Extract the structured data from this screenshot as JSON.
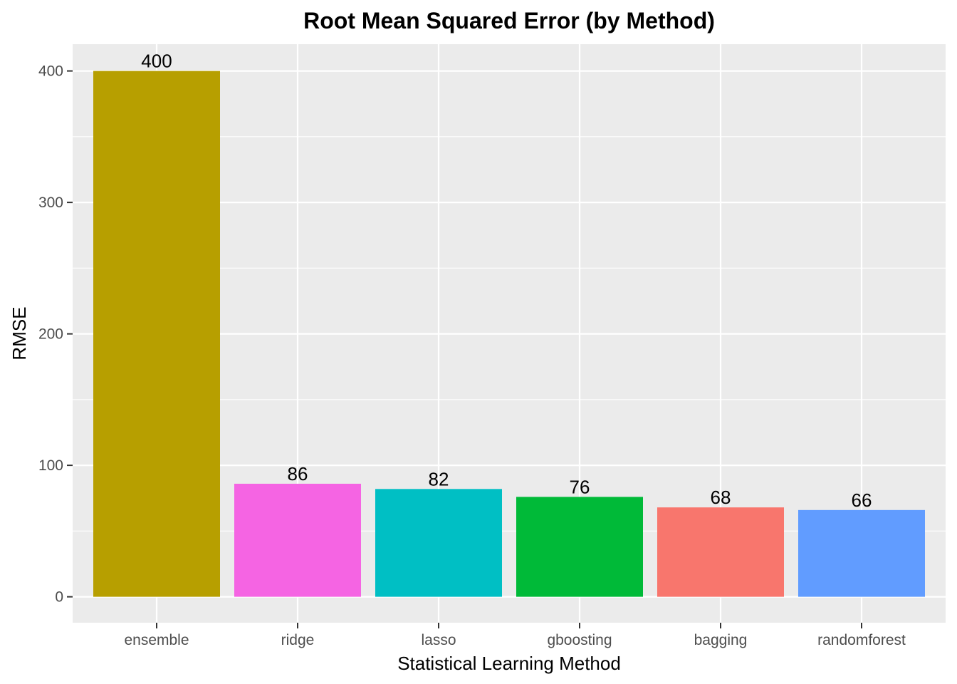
{
  "chart_data": {
    "type": "bar",
    "title": "Root Mean Squared Error (by Method)",
    "xlabel": "Statistical Learning Method",
    "ylabel": "RMSE",
    "categories": [
      "ensemble",
      "ridge",
      "lasso",
      "gboosting",
      "bagging",
      "randomforest"
    ],
    "values": [
      400,
      86,
      82,
      76,
      68,
      66
    ],
    "data_labels": [
      "400",
      "86",
      "82",
      "76",
      "68",
      "66"
    ],
    "colors": [
      "#B79F00",
      "#F564E3",
      "#00BFC4",
      "#00BA38",
      "#F8766D",
      "#619CFF"
    ],
    "yticks": [
      0,
      100,
      200,
      300,
      400
    ],
    "ytick_labels": [
      "0",
      "100",
      "200",
      "300",
      "400"
    ],
    "ylim": [
      -20,
      420
    ],
    "grid": true,
    "legend": "none",
    "panel_background": "#EBEBEB",
    "gridline_color": "#FFFFFF"
  }
}
